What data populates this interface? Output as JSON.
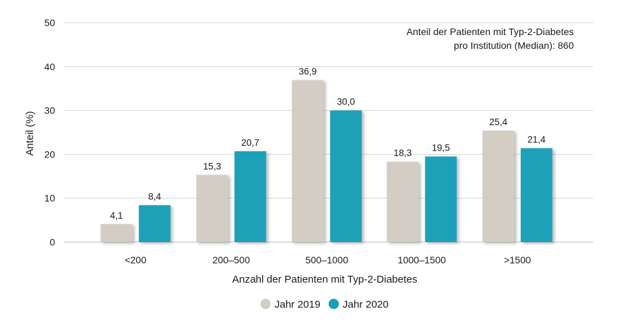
{
  "chart_data": {
    "type": "bar",
    "categories": [
      "<200",
      "200–500",
      "500–1000",
      "1000–1500",
      ">1500"
    ],
    "series": [
      {
        "name": "Jahr 2019",
        "values": [
          4.1,
          15.3,
          36.9,
          18.3,
          25.4
        ],
        "labels": [
          "4,1",
          "15,3",
          "36,9",
          "18,3",
          "25,4"
        ],
        "color": "#d3cdc3"
      },
      {
        "name": "Jahr 2020",
        "values": [
          8.4,
          20.7,
          30.0,
          19.5,
          21.4
        ],
        "labels": [
          "8,4",
          "20,7",
          "30,0",
          "19,5",
          "21,4"
        ],
        "color": "#1aa1b8"
      }
    ],
    "xlabel": "Anzahl der Patienten mit Typ-2-Diabetes",
    "ylabel": "Anteil (%)",
    "ylim": [
      0,
      50
    ],
    "yticks": [
      0,
      10,
      20,
      30,
      40,
      50
    ],
    "grid": true,
    "legend_position": "bottom",
    "annotation": {
      "line1": "Anteil der Patienten mit Typ-2-Diabetes",
      "line2": "pro Institution (Median): 860"
    }
  }
}
